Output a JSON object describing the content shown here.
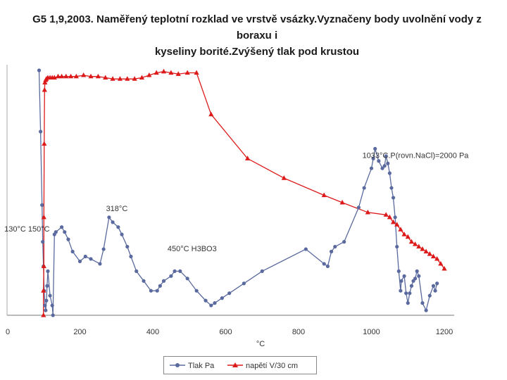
{
  "chart_data": {
    "type": "line",
    "title_line1": "G5 1,9,2003. Naměřený teplotní rozklad ve vrstvě vsázky.Vyznačeny body uvolnění vody z boraxu i",
    "title_line2": "kyseliny borité.Zvýšený tlak pod krustou",
    "xlabel": "°C",
    "xlim": [
      0,
      1200
    ],
    "ylim": [
      0,
      100
    ],
    "x_ticks": [
      "0",
      "200",
      "400",
      "600",
      "800",
      "1000",
      "1200"
    ],
    "x_tick_values": [
      0,
      200,
      400,
      600,
      800,
      1000,
      1200
    ],
    "annotations": [
      {
        "text": "318°C",
        "x": 318,
        "y": 42
      },
      {
        "text": "130°C 150°C",
        "x": 120,
        "y": 33
      },
      {
        "text": "450°C H3BO3",
        "x": 450,
        "y": 25
      },
      {
        "text": "1033°C.P(rovn.NaCl)=2000 Pa",
        "x": 1033,
        "y": 61
      }
    ],
    "series": [
      {
        "name": "Tlak Pa",
        "color": "#5a6a9e",
        "marker": "circle",
        "x": [
          88,
          92,
          96,
          98,
          100,
          102,
          104,
          106,
          108,
          110,
          112,
          118,
          124,
          126,
          130,
          134,
          150,
          158,
          168,
          180,
          200,
          215,
          230,
          255,
          265,
          280,
          290,
          305,
          315,
          330,
          340,
          355,
          375,
          395,
          412,
          420,
          430,
          450,
          460,
          475,
          495,
          520,
          545,
          560,
          570,
          590,
          610,
          650,
          700,
          820,
          870,
          880,
          890,
          900,
          925,
          965,
          980,
          1000,
          1005,
          1010,
          1020,
          1030,
          1036,
          1040,
          1045,
          1050,
          1055,
          1060,
          1065,
          1070,
          1075,
          1080,
          1082,
          1090,
          1095,
          1100,
          1105,
          1110,
          1115,
          1120,
          1125,
          1130,
          1140,
          1150,
          1160,
          1170,
          1175,
          1180
        ],
        "y": [
          100,
          75,
          45,
          30,
          20,
          10,
          4,
          2,
          6,
          12,
          18,
          8,
          4,
          0,
          33,
          34,
          36,
          34,
          31,
          26,
          22,
          24,
          23,
          21,
          27,
          40,
          38,
          36,
          33,
          28,
          24,
          18,
          14,
          10,
          10,
          12,
          14,
          16,
          18,
          18,
          15,
          10,
          6,
          4,
          5,
          7,
          9,
          13,
          18,
          27,
          21,
          20,
          26,
          28,
          30,
          44,
          52,
          60,
          64,
          68,
          63,
          60,
          61,
          65,
          62,
          58,
          52,
          48,
          40,
          28,
          18,
          10,
          14,
          16,
          9,
          5,
          9,
          12,
          14,
          15,
          18,
          16,
          5,
          2,
          8,
          12,
          10,
          13
        ],
        "markers_y": [
          100,
          45,
          30,
          20,
          10,
          4,
          2,
          6,
          12,
          18,
          8,
          4,
          0,
          33,
          34,
          36,
          34,
          31,
          26,
          22,
          24,
          23,
          21,
          27,
          40,
          38,
          36,
          33,
          28,
          24,
          18,
          14,
          10,
          10,
          12,
          14,
          16,
          18,
          18,
          15,
          10,
          6,
          4,
          5,
          7,
          9,
          13,
          18,
          27,
          21,
          20,
          26,
          28,
          30,
          44,
          52,
          60,
          64,
          68,
          63,
          60,
          61,
          65,
          62,
          58,
          52,
          48,
          40,
          28,
          18,
          10,
          14,
          16,
          9,
          5,
          9,
          12,
          14,
          15,
          18,
          16,
          5,
          2,
          8,
          12,
          10,
          13
        ]
      },
      {
        "name": "napětí V/30 cm",
        "color": "#dd1a1a",
        "marker": "triangle",
        "x": [
          100,
          100,
          101,
          101,
          102,
          103,
          104,
          106,
          108,
          112,
          118,
          124,
          130,
          140,
          150,
          162,
          175,
          190,
          210,
          230,
          250,
          270,
          290,
          310,
          330,
          350,
          370,
          390,
          410,
          430,
          450,
          470,
          495,
          520,
          560,
          660,
          760,
          870,
          920,
          990,
          1040,
          1050,
          1060,
          1070,
          1080,
          1090,
          1100,
          1110,
          1120,
          1130,
          1140,
          1150,
          1160,
          1170,
          1180,
          1190,
          1200
        ],
        "y": [
          0,
          10,
          20,
          40,
          70,
          92,
          95,
          96,
          96.5,
          97,
          97,
          97,
          97,
          97.5,
          97.5,
          97.5,
          97.5,
          97.5,
          98,
          97.5,
          97.5,
          97,
          96.5,
          96.5,
          96.5,
          96.5,
          97,
          98,
          99,
          99.5,
          99,
          98.5,
          99,
          99,
          82,
          64,
          56,
          49,
          46,
          42,
          41,
          40,
          38,
          37,
          35,
          33,
          32,
          30,
          29,
          28,
          27,
          26,
          25,
          24,
          23,
          21,
          19
        ]
      }
    ],
    "legend": [
      "Tlak Pa",
      "napětí V/30 cm"
    ]
  }
}
